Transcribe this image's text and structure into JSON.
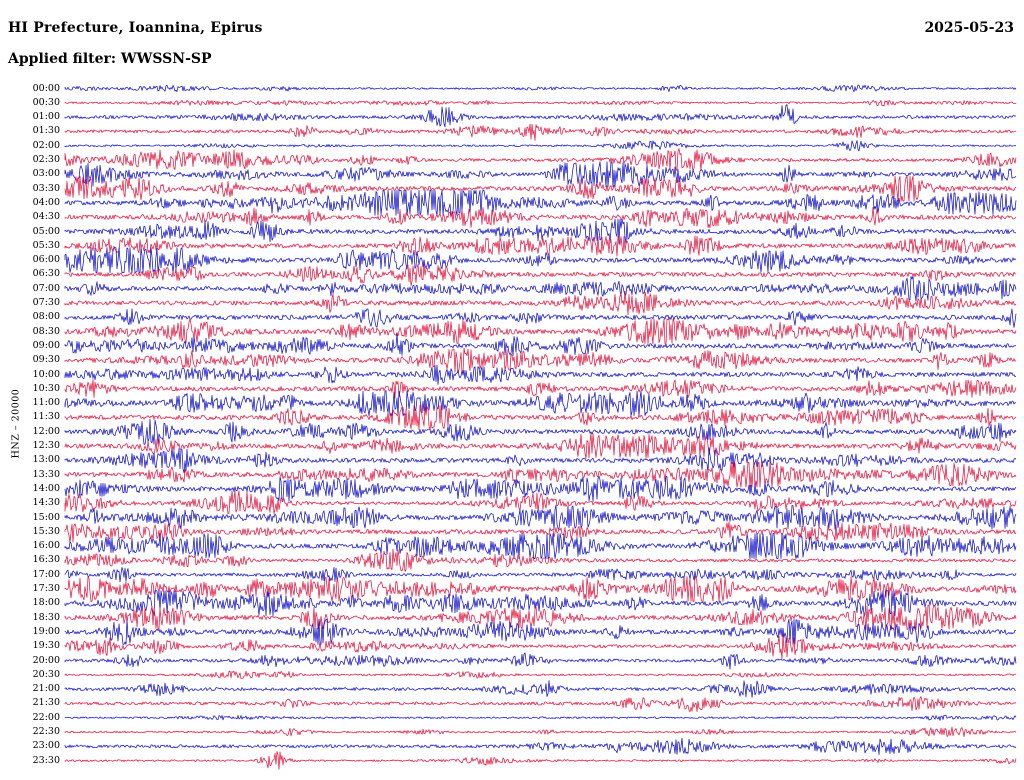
{
  "header": {
    "title": "HI Prefecture, Ioannina, Epirus",
    "date": "2025-05-23",
    "filter_label": "Applied filter: WWSSN-SP"
  },
  "axis": {
    "channel_label": "HNZ – 20000"
  },
  "colors": {
    "trace_red": "#e81740",
    "trace_blue": "#1414cc",
    "text": "#000000",
    "background": "#ffffff"
  },
  "chart_data": {
    "type": "line",
    "subtype": "helicorder-seismogram",
    "title": "HI Prefecture, Ioannina, Epirus",
    "date": "2025-05-23",
    "filter": "WWSSN-SP",
    "channel": "HNZ",
    "gain_scale": "20000",
    "minutes_per_row": 30,
    "row_count": 48,
    "note": "Continuous seismic waveform day-plot; rows alternate blue/red per 30-minute segment; waveform amplitudes estimated qualitatively (activity 1=quiet, 2=moderate, 3=busy); events = visible bursts at fractional positions along the row with peak amplitude in px",
    "rows": [
      {
        "time": "00:00",
        "color": "blue",
        "activity": 1,
        "events": []
      },
      {
        "time": "00:30",
        "color": "red",
        "activity": 1,
        "events": [
          {
            "pos": 0.86,
            "amp": 3
          }
        ]
      },
      {
        "time": "01:00",
        "color": "blue",
        "activity": 2,
        "events": [
          {
            "pos": 0.4,
            "amp": 5
          },
          {
            "pos": 0.76,
            "amp": 11
          }
        ]
      },
      {
        "time": "01:30",
        "color": "red",
        "activity": 2,
        "events": [
          {
            "pos": 0.49,
            "amp": 9
          }
        ]
      },
      {
        "time": "02:00",
        "color": "blue",
        "activity": 1,
        "events": [
          {
            "pos": 0.83,
            "amp": 5
          }
        ]
      },
      {
        "time": "02:30",
        "color": "red",
        "activity": 2,
        "events": [
          {
            "pos": 0.18,
            "amp": 4
          },
          {
            "pos": 0.36,
            "amp": 4
          }
        ]
      },
      {
        "time": "03:00",
        "color": "blue",
        "activity": 2,
        "events": [
          {
            "pos": 0.03,
            "amp": 6
          },
          {
            "pos": 0.53,
            "amp": 9
          },
          {
            "pos": 0.57,
            "amp": 7
          },
          {
            "pos": 0.76,
            "amp": 8
          }
        ]
      },
      {
        "time": "03:30",
        "color": "red",
        "activity": 3,
        "events": [
          {
            "pos": 0.08,
            "amp": 6
          },
          {
            "pos": 0.17,
            "amp": 7
          },
          {
            "pos": 0.55,
            "amp": 9
          },
          {
            "pos": 0.65,
            "amp": 7
          },
          {
            "pos": 0.88,
            "amp": 5
          }
        ]
      },
      {
        "time": "04:00",
        "color": "blue",
        "activity": 3,
        "events": [
          {
            "pos": 0.22,
            "amp": 7
          },
          {
            "pos": 0.42,
            "amp": 6
          },
          {
            "pos": 0.58,
            "amp": 7
          },
          {
            "pos": 0.68,
            "amp": 6
          }
        ]
      },
      {
        "time": "04:30",
        "color": "red",
        "activity": 3,
        "events": [
          {
            "pos": 0.2,
            "amp": 8
          },
          {
            "pos": 0.26,
            "amp": 7
          },
          {
            "pos": 0.35,
            "amp": 6
          },
          {
            "pos": 0.61,
            "amp": 7
          },
          {
            "pos": 0.85,
            "amp": 8
          }
        ]
      },
      {
        "time": "05:00",
        "color": "blue",
        "activity": 3,
        "events": [
          {
            "pos": 0.15,
            "amp": 8
          },
          {
            "pos": 0.21,
            "amp": 9
          },
          {
            "pos": 0.5,
            "amp": 6
          },
          {
            "pos": 0.77,
            "amp": 6
          }
        ]
      },
      {
        "time": "05:30",
        "color": "red",
        "activity": 3,
        "events": [
          {
            "pos": 0.37,
            "amp": 7
          },
          {
            "pos": 0.66,
            "amp": 6
          },
          {
            "pos": 0.95,
            "amp": 5
          }
        ]
      },
      {
        "time": "06:00",
        "color": "blue",
        "activity": 3,
        "events": [
          {
            "pos": 0.12,
            "amp": 7
          },
          {
            "pos": 0.3,
            "amp": 6
          },
          {
            "pos": 0.5,
            "amp": 7
          }
        ]
      },
      {
        "time": "06:30",
        "color": "red",
        "activity": 3,
        "events": [
          {
            "pos": 0.13,
            "amp": 7
          },
          {
            "pos": 0.31,
            "amp": 8
          },
          {
            "pos": 0.37,
            "amp": 7
          },
          {
            "pos": 0.92,
            "amp": 6
          }
        ]
      },
      {
        "time": "07:00",
        "color": "blue",
        "activity": 3,
        "events": [
          {
            "pos": 0.03,
            "amp": 6
          },
          {
            "pos": 0.28,
            "amp": 7
          },
          {
            "pos": 0.9,
            "amp": 6
          }
        ]
      },
      {
        "time": "07:30",
        "color": "red",
        "activity": 3,
        "events": [
          {
            "pos": 0.28,
            "amp": 8
          },
          {
            "pos": 0.6,
            "amp": 5
          },
          {
            "pos": 0.87,
            "amp": 6
          }
        ]
      },
      {
        "time": "08:00",
        "color": "blue",
        "activity": 3,
        "events": [
          {
            "pos": 0.07,
            "amp": 7
          },
          {
            "pos": 0.77,
            "amp": 6
          }
        ]
      },
      {
        "time": "08:30",
        "color": "red",
        "activity": 3,
        "events": [
          {
            "pos": 0.14,
            "amp": 6
          },
          {
            "pos": 0.3,
            "amp": 6
          },
          {
            "pos": 0.63,
            "amp": 8
          },
          {
            "pos": 0.93,
            "amp": 7
          }
        ]
      },
      {
        "time": "09:00",
        "color": "blue",
        "activity": 3,
        "events": [
          {
            "pos": 0.14,
            "amp": 7
          },
          {
            "pos": 0.35,
            "amp": 7
          },
          {
            "pos": 0.48,
            "amp": 6
          }
        ]
      },
      {
        "time": "09:30",
        "color": "red",
        "activity": 3,
        "events": [
          {
            "pos": 0.47,
            "amp": 7
          },
          {
            "pos": 0.92,
            "amp": 8
          },
          {
            "pos": 0.97,
            "amp": 6
          }
        ]
      },
      {
        "time": "10:00",
        "color": "blue",
        "activity": 3,
        "events": [
          {
            "pos": 0.28,
            "amp": 7
          },
          {
            "pos": 0.39,
            "amp": 6
          },
          {
            "pos": 0.83,
            "amp": 6
          }
        ]
      },
      {
        "time": "10:30",
        "color": "red",
        "activity": 3,
        "events": [
          {
            "pos": 0.35,
            "amp": 8
          },
          {
            "pos": 0.5,
            "amp": 7
          },
          {
            "pos": 0.85,
            "amp": 7
          }
        ]
      },
      {
        "time": "11:00",
        "color": "blue",
        "activity": 3,
        "events": [
          {
            "pos": 0.13,
            "amp": 7
          },
          {
            "pos": 0.6,
            "amp": 6
          },
          {
            "pos": 0.66,
            "amp": 7
          },
          {
            "pos": 0.78,
            "amp": 7
          }
        ]
      },
      {
        "time": "11:30",
        "color": "red",
        "activity": 3,
        "events": [
          {
            "pos": 0.24,
            "amp": 8
          },
          {
            "pos": 0.55,
            "amp": 6
          },
          {
            "pos": 0.97,
            "amp": 7
          }
        ]
      },
      {
        "time": "12:00",
        "color": "blue",
        "activity": 3,
        "events": [
          {
            "pos": 0.09,
            "amp": 8
          },
          {
            "pos": 0.31,
            "amp": 7
          },
          {
            "pos": 0.8,
            "amp": 7
          },
          {
            "pos": 0.95,
            "amp": 6
          }
        ]
      },
      {
        "time": "12:30",
        "color": "red",
        "activity": 3,
        "events": [
          {
            "pos": 0.1,
            "amp": 7
          },
          {
            "pos": 0.28,
            "amp": 6
          },
          {
            "pos": 0.55,
            "amp": 7
          },
          {
            "pos": 0.9,
            "amp": 6
          }
        ]
      },
      {
        "time": "13:00",
        "color": "blue",
        "activity": 3,
        "events": [
          {
            "pos": 0.12,
            "amp": 9
          },
          {
            "pos": 0.21,
            "amp": 6
          },
          {
            "pos": 0.68,
            "amp": 7
          }
        ]
      },
      {
        "time": "13:30",
        "color": "red",
        "activity": 3,
        "events": [
          {
            "pos": 0.12,
            "amp": 7
          },
          {
            "pos": 0.47,
            "amp": 7
          },
          {
            "pos": 0.7,
            "amp": 8
          },
          {
            "pos": 0.93,
            "amp": 7
          }
        ]
      },
      {
        "time": "14:00",
        "color": "blue",
        "activity": 3,
        "events": [
          {
            "pos": 0.23,
            "amp": 7
          },
          {
            "pos": 0.55,
            "amp": 6
          },
          {
            "pos": 0.73,
            "amp": 8
          }
        ]
      },
      {
        "time": "14:30",
        "color": "red",
        "activity": 2,
        "events": [
          {
            "pos": 0.22,
            "amp": 6
          },
          {
            "pos": 0.5,
            "amp": 5
          }
        ]
      },
      {
        "time": "15:00",
        "color": "blue",
        "activity": 3,
        "events": [
          {
            "pos": 0.03,
            "amp": 7
          },
          {
            "pos": 0.12,
            "amp": 7
          },
          {
            "pos": 0.76,
            "amp": 7
          }
        ]
      },
      {
        "time": "15:30",
        "color": "red",
        "activity": 3,
        "events": [
          {
            "pos": 0.11,
            "amp": 7
          },
          {
            "pos": 0.7,
            "amp": 8
          }
        ]
      },
      {
        "time": "16:00",
        "color": "blue",
        "activity": 3,
        "events": [
          {
            "pos": 0.1,
            "amp": 7
          },
          {
            "pos": 0.34,
            "amp": 8
          },
          {
            "pos": 0.51,
            "amp": 6
          }
        ]
      },
      {
        "time": "16:30",
        "color": "red",
        "activity": 2,
        "events": [
          {
            "pos": 0.18,
            "amp": 5
          },
          {
            "pos": 0.35,
            "amp": 7
          }
        ]
      },
      {
        "time": "17:00",
        "color": "blue",
        "activity": 2,
        "events": [
          {
            "pos": 0.06,
            "amp": 6
          },
          {
            "pos": 0.28,
            "amp": 6
          },
          {
            "pos": 0.93,
            "amp": 5
          }
        ]
      },
      {
        "time": "17:30",
        "color": "red",
        "activity": 3,
        "events": [
          {
            "pos": 0.08,
            "amp": 6
          },
          {
            "pos": 0.15,
            "amp": 7
          },
          {
            "pos": 0.2,
            "amp": 6
          }
        ]
      },
      {
        "time": "18:00",
        "color": "blue",
        "activity": 3,
        "events": [
          {
            "pos": 0.21,
            "amp": 8
          },
          {
            "pos": 0.3,
            "amp": 7
          },
          {
            "pos": 0.6,
            "amp": 6
          },
          {
            "pos": 0.73,
            "amp": 7
          }
        ]
      },
      {
        "time": "18:30",
        "color": "red",
        "activity": 3,
        "events": [
          {
            "pos": 0.27,
            "amp": 6
          },
          {
            "pos": 0.84,
            "amp": 7
          }
        ]
      },
      {
        "time": "19:00",
        "color": "blue",
        "activity": 3,
        "events": [
          {
            "pos": 0.06,
            "amp": 6
          },
          {
            "pos": 0.27,
            "amp": 8
          },
          {
            "pos": 0.58,
            "amp": 6
          }
        ]
      },
      {
        "time": "19:30",
        "color": "red",
        "activity": 2,
        "events": [
          {
            "pos": 0.1,
            "amp": 7
          },
          {
            "pos": 0.75,
            "amp": 8
          }
        ]
      },
      {
        "time": "20:00",
        "color": "blue",
        "activity": 2,
        "events": [
          {
            "pos": 0.48,
            "amp": 7
          },
          {
            "pos": 0.7,
            "amp": 8
          }
        ]
      },
      {
        "time": "20:30",
        "color": "red",
        "activity": 1,
        "events": [
          {
            "pos": 0.23,
            "amp": 3
          }
        ]
      },
      {
        "time": "21:00",
        "color": "blue",
        "activity": 2,
        "events": [
          {
            "pos": 0.51,
            "amp": 6
          },
          {
            "pos": 0.72,
            "amp": 8
          }
        ]
      },
      {
        "time": "21:30",
        "color": "red",
        "activity": 2,
        "events": [
          {
            "pos": 0.6,
            "amp": 6
          },
          {
            "pos": 0.67,
            "amp": 7
          }
        ]
      },
      {
        "time": "22:00",
        "color": "blue",
        "activity": 1,
        "events": []
      },
      {
        "time": "22:30",
        "color": "red",
        "activity": 1,
        "events": [
          {
            "pos": 0.24,
            "amp": 3
          }
        ]
      },
      {
        "time": "23:00",
        "color": "blue",
        "activity": 2,
        "events": [
          {
            "pos": 0.58,
            "amp": 4
          },
          {
            "pos": 0.8,
            "amp": 4
          }
        ]
      },
      {
        "time": "23:30",
        "color": "red",
        "activity": 1,
        "events": [
          {
            "pos": 0.22,
            "amp": 10
          }
        ]
      }
    ]
  }
}
